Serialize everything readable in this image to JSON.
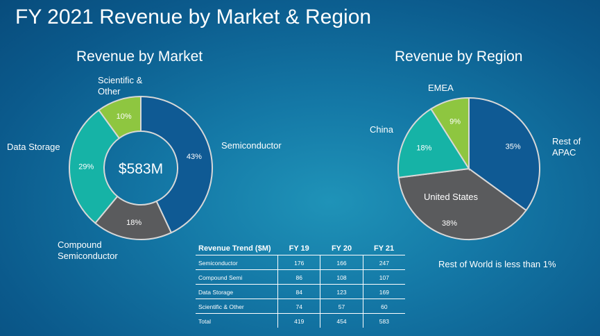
{
  "title": "FY 2021 Revenue by Market & Region",
  "chart_data": [
    {
      "type": "pie",
      "variant": "donut",
      "title": "Revenue by Market",
      "center_label": "$583M",
      "slices": [
        {
          "label": "Semiconductor",
          "value": 43,
          "value_label": "43%",
          "color": "#0f5a94"
        },
        {
          "label": "Compound\nSemiconductor",
          "value": 18,
          "value_label": "18%",
          "color": "#5a5b5d"
        },
        {
          "label": "Data Storage",
          "value": 29,
          "value_label": "29%",
          "color": "#16b3a6"
        },
        {
          "label": "Scientific &\nOther",
          "value": 10,
          "value_label": "10%",
          "color": "#8ec640"
        }
      ]
    },
    {
      "type": "pie",
      "title": "Revenue by Region",
      "slices": [
        {
          "label": "Rest of\nAPAC",
          "value": 35,
          "value_label": "35%",
          "color": "#0f5a94"
        },
        {
          "label": "United States",
          "value": 38,
          "value_label": "38%",
          "color": "#5a5b5d"
        },
        {
          "label": "China",
          "value": 18,
          "value_label": "18%",
          "color": "#16b3a6"
        },
        {
          "label": "EMEA",
          "value": 9,
          "value_label": "9%",
          "color": "#8ec640"
        }
      ]
    },
    {
      "type": "table",
      "headers": [
        "Revenue Trend ($M)",
        "FY 19",
        "FY 20",
        "FY 21"
      ],
      "rows": [
        [
          "Semiconductor",
          "176",
          "166",
          "247"
        ],
        [
          "Compound Semi",
          "86",
          "108",
          "107"
        ],
        [
          "Data Storage",
          "84",
          "123",
          "169"
        ],
        [
          "Scientific & Other",
          "74",
          "57",
          "60"
        ],
        [
          "Total",
          "419",
          "454",
          "583"
        ]
      ]
    }
  ],
  "note": "Rest of World is less than 1%",
  "colors": {
    "background": "#0b5a8c",
    "text": "#ffffff"
  }
}
